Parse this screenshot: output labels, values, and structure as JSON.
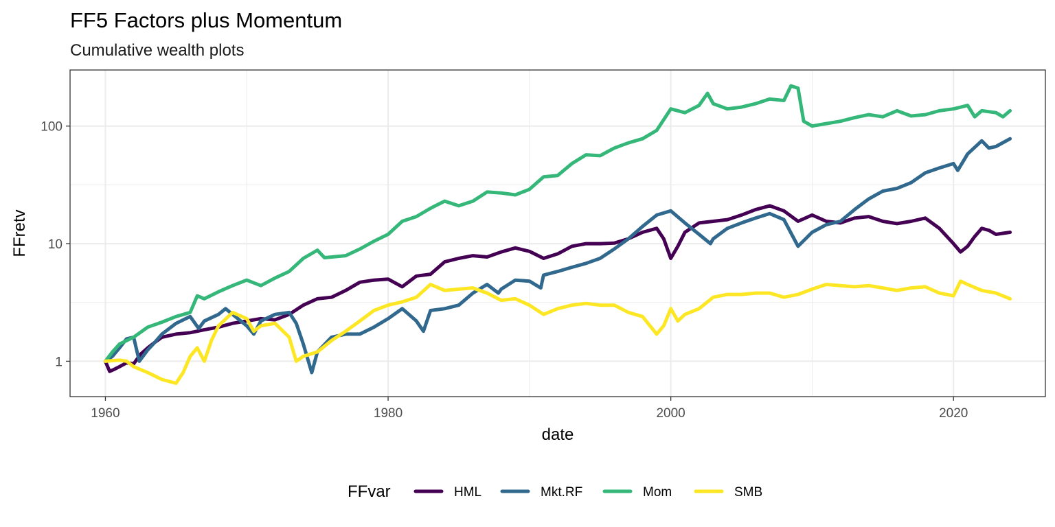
{
  "chart_data": {
    "type": "line",
    "title": "FF5 Factors plus Momentum",
    "subtitle": "Cumulative wealth plots",
    "xlabel": "date",
    "ylabel": "FFretv",
    "x_scale": "date",
    "y_scale": "log10",
    "xlim": [
      1957.5,
      2026.5
    ],
    "ylim": [
      0.5,
      300
    ],
    "x_ticks": [
      1960,
      1980,
      2000,
      2020
    ],
    "x_tick_labels": [
      "1960",
      "1980",
      "2000",
      "2020"
    ],
    "y_ticks": [
      1,
      10,
      100
    ],
    "y_tick_labels": [
      "1",
      "10",
      "100"
    ],
    "grid": true,
    "legend": {
      "title": "FFvar",
      "position": "bottom"
    },
    "series": [
      {
        "name": "HML",
        "color": "#440154",
        "points": [
          [
            1960.0,
            1.0
          ],
          [
            1960.3,
            0.82
          ],
          [
            1960.6,
            0.85
          ],
          [
            1961.0,
            0.9
          ],
          [
            1961.5,
            0.97
          ],
          [
            1962.0,
            0.95
          ],
          [
            1962.5,
            1.15
          ],
          [
            1963.0,
            1.3
          ],
          [
            1963.5,
            1.45
          ],
          [
            1964.0,
            1.6
          ],
          [
            1965.0,
            1.7
          ],
          [
            1966.0,
            1.75
          ],
          [
            1967.0,
            1.85
          ],
          [
            1968.0,
            1.95
          ],
          [
            1969.0,
            2.1
          ],
          [
            1970.0,
            2.2
          ],
          [
            1971.0,
            2.3
          ],
          [
            1972.0,
            2.25
          ],
          [
            1973.0,
            2.5
          ],
          [
            1974.0,
            3.0
          ],
          [
            1975.0,
            3.4
          ],
          [
            1976.0,
            3.5
          ],
          [
            1977.0,
            4.0
          ],
          [
            1978.0,
            4.7
          ],
          [
            1979.0,
            4.9
          ],
          [
            1980.0,
            5.0
          ],
          [
            1981.0,
            4.3
          ],
          [
            1982.0,
            5.3
          ],
          [
            1983.0,
            5.5
          ],
          [
            1984.0,
            7.0
          ],
          [
            1985.0,
            7.5
          ],
          [
            1986.0,
            7.9
          ],
          [
            1987.0,
            7.7
          ],
          [
            1988.0,
            8.5
          ],
          [
            1989.0,
            9.2
          ],
          [
            1990.0,
            8.6
          ],
          [
            1991.0,
            7.5
          ],
          [
            1992.0,
            8.2
          ],
          [
            1993.0,
            9.5
          ],
          [
            1994.0,
            10.0
          ],
          [
            1995.0,
            10.0
          ],
          [
            1996.0,
            10.1
          ],
          [
            1997.0,
            11.0
          ],
          [
            1998.0,
            12.5
          ],
          [
            1999.0,
            13.5
          ],
          [
            1999.5,
            11.0
          ],
          [
            2000.0,
            7.5
          ],
          [
            2000.5,
            9.5
          ],
          [
            2001.0,
            12.5
          ],
          [
            2002.0,
            15.0
          ],
          [
            2003.0,
            15.5
          ],
          [
            2004.0,
            16.0
          ],
          [
            2005.0,
            17.5
          ],
          [
            2006.0,
            19.5
          ],
          [
            2007.0,
            21.0
          ],
          [
            2008.0,
            19.0
          ],
          [
            2009.0,
            15.5
          ],
          [
            2010.0,
            17.5
          ],
          [
            2011.0,
            15.5
          ],
          [
            2012.0,
            15.0
          ],
          [
            2013.0,
            16.5
          ],
          [
            2014.0,
            17.0
          ],
          [
            2015.0,
            15.5
          ],
          [
            2016.0,
            14.8
          ],
          [
            2017.0,
            15.5
          ],
          [
            2018.0,
            16.5
          ],
          [
            2019.0,
            13.5
          ],
          [
            2020.0,
            10.0
          ],
          [
            2020.5,
            8.5
          ],
          [
            2021.0,
            9.5
          ],
          [
            2021.5,
            11.5
          ],
          [
            2022.0,
            13.5
          ],
          [
            2022.5,
            13.0
          ],
          [
            2023.0,
            12.0
          ],
          [
            2024.0,
            12.5
          ]
        ]
      },
      {
        "name": "Mkt.RF",
        "color": "#31688e",
        "points": [
          [
            1960.0,
            1.0
          ],
          [
            1960.5,
            1.1
          ],
          [
            1961.0,
            1.3
          ],
          [
            1961.5,
            1.55
          ],
          [
            1962.0,
            1.6
          ],
          [
            1962.4,
            1.0
          ],
          [
            1963.0,
            1.25
          ],
          [
            1963.5,
            1.45
          ],
          [
            1964.0,
            1.7
          ],
          [
            1965.0,
            2.1
          ],
          [
            1966.0,
            2.4
          ],
          [
            1966.6,
            1.9
          ],
          [
            1967.0,
            2.2
          ],
          [
            1968.0,
            2.5
          ],
          [
            1968.5,
            2.8
          ],
          [
            1969.0,
            2.5
          ],
          [
            1970.0,
            2.0
          ],
          [
            1970.5,
            1.7
          ],
          [
            1971.0,
            2.2
          ],
          [
            1972.0,
            2.5
          ],
          [
            1973.0,
            2.6
          ],
          [
            1973.5,
            2.1
          ],
          [
            1974.0,
            1.4
          ],
          [
            1974.6,
            0.8
          ],
          [
            1975.0,
            1.2
          ],
          [
            1976.0,
            1.6
          ],
          [
            1977.0,
            1.7
          ],
          [
            1978.0,
            1.7
          ],
          [
            1979.0,
            1.95
          ],
          [
            1980.0,
            2.3
          ],
          [
            1981.0,
            2.8
          ],
          [
            1982.0,
            2.2
          ],
          [
            1982.5,
            1.8
          ],
          [
            1983.0,
            2.7
          ],
          [
            1984.0,
            2.8
          ],
          [
            1985.0,
            3.0
          ],
          [
            1986.0,
            3.8
          ],
          [
            1987.0,
            4.5
          ],
          [
            1987.8,
            3.8
          ],
          [
            1988.0,
            4.1
          ],
          [
            1989.0,
            4.9
          ],
          [
            1990.0,
            4.8
          ],
          [
            1990.8,
            4.2
          ],
          [
            1991.0,
            5.4
          ],
          [
            1992.0,
            5.8
          ],
          [
            1993.0,
            6.3
          ],
          [
            1994.0,
            6.8
          ],
          [
            1995.0,
            7.5
          ],
          [
            1996.0,
            9.0
          ],
          [
            1997.0,
            11.0
          ],
          [
            1998.0,
            14.0
          ],
          [
            1999.0,
            17.5
          ],
          [
            2000.0,
            19.0
          ],
          [
            2001.0,
            15.0
          ],
          [
            2002.0,
            12.0
          ],
          [
            2002.8,
            10.0
          ],
          [
            2003.0,
            11.0
          ],
          [
            2004.0,
            13.5
          ],
          [
            2005.0,
            15.0
          ],
          [
            2006.0,
            16.5
          ],
          [
            2007.0,
            18.0
          ],
          [
            2008.0,
            16.0
          ],
          [
            2009.0,
            9.5
          ],
          [
            2010.0,
            12.5
          ],
          [
            2011.0,
            14.5
          ],
          [
            2012.0,
            15.5
          ],
          [
            2013.0,
            19.5
          ],
          [
            2014.0,
            24.0
          ],
          [
            2015.0,
            28.0
          ],
          [
            2016.0,
            29.5
          ],
          [
            2017.0,
            33.0
          ],
          [
            2018.0,
            40.0
          ],
          [
            2019.0,
            44.0
          ],
          [
            2020.0,
            48.0
          ],
          [
            2020.3,
            42.0
          ],
          [
            2021.0,
            58.0
          ],
          [
            2022.0,
            75.0
          ],
          [
            2022.5,
            65.0
          ],
          [
            2023.0,
            67.0
          ],
          [
            2024.0,
            78.0
          ]
        ]
      },
      {
        "name": "Mom",
        "color": "#35b779",
        "points": [
          [
            1960.0,
            1.0
          ],
          [
            1960.5,
            1.2
          ],
          [
            1961.0,
            1.4
          ],
          [
            1962.0,
            1.6
          ],
          [
            1963.0,
            1.95
          ],
          [
            1964.0,
            2.15
          ],
          [
            1965.0,
            2.4
          ],
          [
            1966.0,
            2.6
          ],
          [
            1966.5,
            3.6
          ],
          [
            1967.0,
            3.4
          ],
          [
            1968.0,
            3.9
          ],
          [
            1969.0,
            4.4
          ],
          [
            1970.0,
            4.9
          ],
          [
            1971.0,
            4.4
          ],
          [
            1972.0,
            5.1
          ],
          [
            1973.0,
            5.8
          ],
          [
            1974.0,
            7.5
          ],
          [
            1975.0,
            8.8
          ],
          [
            1975.5,
            7.6
          ],
          [
            1977.0,
            7.9
          ],
          [
            1978.0,
            9.0
          ],
          [
            1979.0,
            10.5
          ],
          [
            1980.0,
            12.0
          ],
          [
            1981.0,
            15.5
          ],
          [
            1982.0,
            17.0
          ],
          [
            1983.0,
            20.0
          ],
          [
            1984.0,
            23.0
          ],
          [
            1985.0,
            21.0
          ],
          [
            1986.0,
            23.0
          ],
          [
            1987.0,
            27.5
          ],
          [
            1988.0,
            27.0
          ],
          [
            1989.0,
            26.0
          ],
          [
            1990.0,
            29.0
          ],
          [
            1991.0,
            37.0
          ],
          [
            1992.0,
            38.0
          ],
          [
            1993.0,
            48.0
          ],
          [
            1994.0,
            57.0
          ],
          [
            1995.0,
            56.0
          ],
          [
            1996.0,
            65.0
          ],
          [
            1997.0,
            72.0
          ],
          [
            1998.0,
            78.0
          ],
          [
            1999.0,
            92.0
          ],
          [
            2000.0,
            140.0
          ],
          [
            2001.0,
            130.0
          ],
          [
            2002.0,
            150.0
          ],
          [
            2002.6,
            190.0
          ],
          [
            2003.0,
            155.0
          ],
          [
            2004.0,
            140.0
          ],
          [
            2005.0,
            145.0
          ],
          [
            2006.0,
            155.0
          ],
          [
            2007.0,
            170.0
          ],
          [
            2008.0,
            165.0
          ],
          [
            2008.5,
            220.0
          ],
          [
            2009.0,
            210.0
          ],
          [
            2009.4,
            110.0
          ],
          [
            2010.0,
            100.0
          ],
          [
            2011.0,
            105.0
          ],
          [
            2012.0,
            110.0
          ],
          [
            2013.0,
            118.0
          ],
          [
            2014.0,
            125.0
          ],
          [
            2015.0,
            120.0
          ],
          [
            2016.0,
            135.0
          ],
          [
            2017.0,
            122.0
          ],
          [
            2018.0,
            125.0
          ],
          [
            2019.0,
            135.0
          ],
          [
            2020.0,
            140.0
          ],
          [
            2021.0,
            150.0
          ],
          [
            2021.5,
            120.0
          ],
          [
            2022.0,
            135.0
          ],
          [
            2023.0,
            130.0
          ],
          [
            2023.5,
            120.0
          ],
          [
            2024.0,
            135.0
          ]
        ]
      },
      {
        "name": "SMB",
        "color": "#fde725",
        "points": [
          [
            1960.0,
            1.0
          ],
          [
            1961.0,
            1.02
          ],
          [
            1961.5,
            1.0
          ],
          [
            1962.0,
            0.9
          ],
          [
            1963.0,
            0.8
          ],
          [
            1964.0,
            0.7
          ],
          [
            1965.0,
            0.65
          ],
          [
            1965.5,
            0.8
          ],
          [
            1966.0,
            1.1
          ],
          [
            1966.5,
            1.3
          ],
          [
            1967.0,
            1.0
          ],
          [
            1967.5,
            1.5
          ],
          [
            1968.0,
            2.0
          ],
          [
            1969.0,
            2.6
          ],
          [
            1970.0,
            2.3
          ],
          [
            1970.5,
            1.8
          ],
          [
            1971.0,
            2.0
          ],
          [
            1972.0,
            2.1
          ],
          [
            1973.0,
            1.6
          ],
          [
            1973.5,
            1.0
          ],
          [
            1974.0,
            1.1
          ],
          [
            1975.0,
            1.2
          ],
          [
            1976.0,
            1.5
          ],
          [
            1977.0,
            1.8
          ],
          [
            1978.0,
            2.2
          ],
          [
            1979.0,
            2.7
          ],
          [
            1980.0,
            3.0
          ],
          [
            1981.0,
            3.2
          ],
          [
            1982.0,
            3.5
          ],
          [
            1983.0,
            4.5
          ],
          [
            1984.0,
            4.0
          ],
          [
            1985.0,
            4.1
          ],
          [
            1986.0,
            4.2
          ],
          [
            1987.0,
            3.8
          ],
          [
            1988.0,
            3.3
          ],
          [
            1989.0,
            3.4
          ],
          [
            1990.0,
            3.0
          ],
          [
            1991.0,
            2.5
          ],
          [
            1992.0,
            2.8
          ],
          [
            1993.0,
            3.0
          ],
          [
            1994.0,
            3.1
          ],
          [
            1995.0,
            3.0
          ],
          [
            1996.0,
            3.0
          ],
          [
            1997.0,
            2.6
          ],
          [
            1998.0,
            2.4
          ],
          [
            1999.0,
            1.7
          ],
          [
            1999.5,
            2.0
          ],
          [
            2000.0,
            2.8
          ],
          [
            2000.5,
            2.2
          ],
          [
            2001.0,
            2.5
          ],
          [
            2002.0,
            2.8
          ],
          [
            2003.0,
            3.5
          ],
          [
            2004.0,
            3.7
          ],
          [
            2005.0,
            3.7
          ],
          [
            2006.0,
            3.8
          ],
          [
            2007.0,
            3.8
          ],
          [
            2008.0,
            3.5
          ],
          [
            2009.0,
            3.7
          ],
          [
            2010.0,
            4.1
          ],
          [
            2011.0,
            4.5
          ],
          [
            2012.0,
            4.4
          ],
          [
            2013.0,
            4.3
          ],
          [
            2014.0,
            4.4
          ],
          [
            2015.0,
            4.2
          ],
          [
            2016.0,
            4.0
          ],
          [
            2017.0,
            4.2
          ],
          [
            2018.0,
            4.3
          ],
          [
            2019.0,
            3.8
          ],
          [
            2020.0,
            3.6
          ],
          [
            2020.5,
            4.8
          ],
          [
            2021.0,
            4.5
          ],
          [
            2022.0,
            4.0
          ],
          [
            2023.0,
            3.8
          ],
          [
            2024.0,
            3.4
          ]
        ]
      }
    ]
  }
}
